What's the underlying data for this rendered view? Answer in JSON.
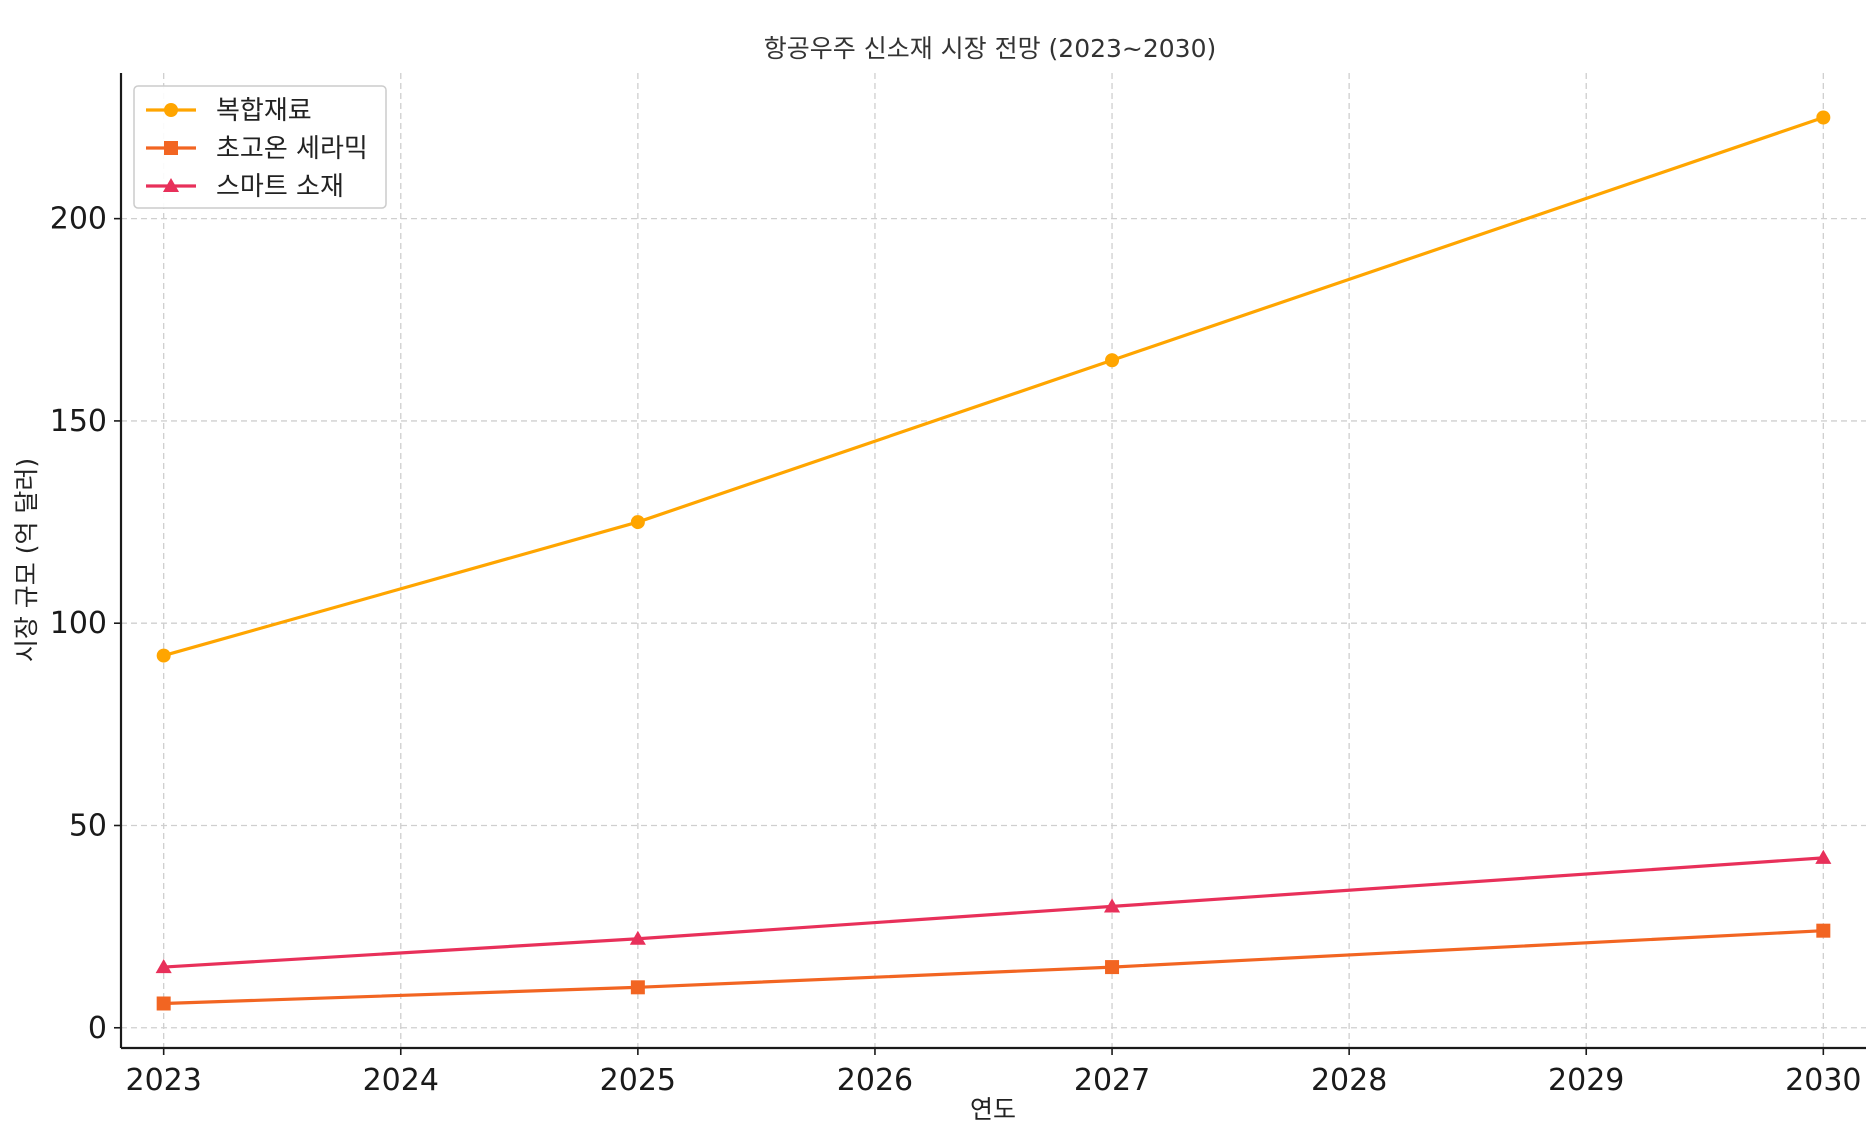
{
  "chart_data": {
    "type": "line",
    "title": "항공우주 신소재 시장 전망 (2023~2030)",
    "xlabel": "연도",
    "ylabel": "시장 규모 (억 달러)",
    "x_ticks": [
      "2023",
      "2024",
      "2025",
      "2026",
      "2027",
      "2028",
      "2029",
      "2030"
    ],
    "y_ticks": [
      "0",
      "50",
      "100",
      "150",
      "200"
    ],
    "xlim": [
      2022.82,
      2030.18
    ],
    "ylim": [
      -5,
      236
    ],
    "grid": true,
    "legend_position": "upper left",
    "series": [
      {
        "name": "복합재료",
        "color": "#FFA500",
        "marker": "circle",
        "x": [
          2023,
          2025,
          2027,
          2030
        ],
        "y": [
          92,
          125,
          165,
          225
        ]
      },
      {
        "name": "초고온 세라믹",
        "color": "#F26522",
        "marker": "square",
        "x": [
          2023,
          2025,
          2027,
          2030
        ],
        "y": [
          6,
          10,
          15,
          24
        ]
      },
      {
        "name": "스마트 소재",
        "color": "#E8305A",
        "marker": "triangle",
        "x": [
          2023,
          2025,
          2027,
          2030
        ],
        "y": [
          15,
          22,
          30,
          42
        ]
      }
    ]
  }
}
